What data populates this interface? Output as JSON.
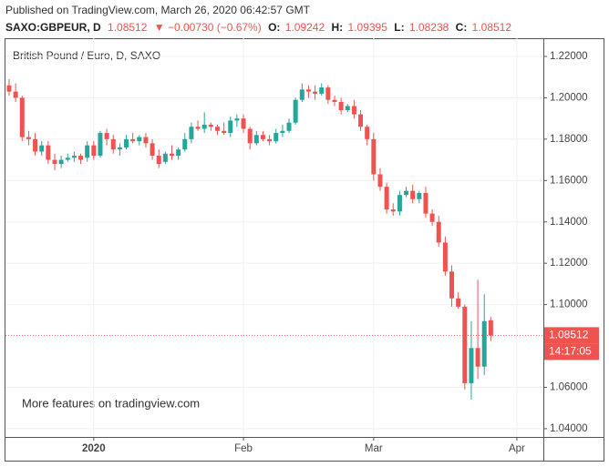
{
  "header": {
    "published": "Published on TradingView.com, March 26, 2020 06:42:57 GMT",
    "symbol": "SAXO:GBPEUR, D",
    "price": "1.08512",
    "change": "▼ −0.00730 (−0.67%)",
    "ohlc": [
      {
        "label": "O:",
        "value": "1.09242"
      },
      {
        "label": "H:",
        "value": "1.09395"
      },
      {
        "label": "L:",
        "value": "1.08238"
      },
      {
        "label": "C:",
        "value": "1.08512"
      }
    ]
  },
  "chart_data": {
    "type": "candlestick",
    "title": "British Pound / Euro, D, SAXO",
    "watermark": "More features on tradingview.com",
    "up_color": "#26a69a",
    "down_color": "#ef5350",
    "categories": [
      null,
      null,
      null,
      null,
      null,
      null,
      null,
      null,
      null,
      null,
      null,
      null,
      null,
      "2020",
      null,
      null,
      null,
      null,
      null,
      null,
      null,
      null,
      null,
      null,
      null,
      null,
      null,
      null,
      null,
      null,
      null,
      null,
      null,
      null,
      null,
      null,
      "Feb",
      null,
      null,
      null,
      null,
      null,
      null,
      null,
      null,
      null,
      null,
      null,
      null,
      null,
      null,
      null,
      null,
      null,
      null,
      null,
      "Mar",
      null,
      null,
      null,
      null,
      null,
      null,
      null,
      null,
      null,
      null,
      null,
      null,
      null,
      null,
      null,
      null,
      null,
      null,
      null,
      null,
      null,
      "Apr"
    ],
    "open": [
      1.206,
      1.203,
      1.2,
      1.181,
      1.18,
      1.174,
      1.177,
      1.17,
      1.168,
      1.17,
      1.171,
      1.172,
      1.171,
      1.177,
      1.172,
      1.183,
      1.18,
      1.175,
      1.176,
      1.18,
      1.179,
      1.181,
      1.178,
      1.172,
      1.169,
      1.173,
      1.172,
      1.175,
      1.18,
      1.186,
      1.185,
      1.187,
      1.186,
      1.184,
      1.183,
      1.189,
      1.19,
      1.185,
      1.178,
      1.182,
      1.18,
      1.179,
      1.183,
      1.184,
      1.188,
      1.199,
      1.204,
      1.203,
      1.202,
      1.205,
      1.199,
      1.198,
      1.194,
      1.196,
      1.192,
      1.186,
      1.18,
      1.163,
      1.157,
      1.146,
      1.145,
      1.153,
      1.155,
      1.151,
      1.154,
      1.144,
      1.14,
      1.13,
      1.116,
      1.103,
      1.099,
      1.062,
      1.079,
      1.07,
      1.09242,
      null,
      null,
      null,
      null
    ],
    "high": [
      1.209,
      1.207,
      1.201,
      1.184,
      1.183,
      1.179,
      1.179,
      1.173,
      1.172,
      1.173,
      1.174,
      1.173,
      1.179,
      1.179,
      1.184,
      1.185,
      1.182,
      1.178,
      1.182,
      1.183,
      1.182,
      1.183,
      1.18,
      1.175,
      1.174,
      1.177,
      1.176,
      1.183,
      1.188,
      1.189,
      1.193,
      1.188,
      1.187,
      1.188,
      1.191,
      1.192,
      1.192,
      1.186,
      1.184,
      1.184,
      1.182,
      1.185,
      1.187,
      1.19,
      1.2,
      1.207,
      1.206,
      1.206,
      1.207,
      1.206,
      1.201,
      1.2,
      1.197,
      1.199,
      1.194,
      1.187,
      1.183,
      1.166,
      1.159,
      1.149,
      1.155,
      1.157,
      1.158,
      1.155,
      1.157,
      1.146,
      1.143,
      1.133,
      1.119,
      1.106,
      1.1,
      1.092,
      1.112,
      1.105,
      1.09395,
      null,
      null,
      null,
      null
    ],
    "low": [
      1.201,
      1.198,
      1.179,
      1.177,
      1.172,
      1.172,
      1.168,
      1.165,
      1.166,
      1.169,
      1.169,
      1.168,
      1.169,
      1.17,
      1.171,
      1.177,
      1.173,
      1.172,
      1.175,
      1.178,
      1.177,
      1.176,
      1.17,
      1.166,
      1.168,
      1.17,
      1.17,
      1.174,
      1.178,
      1.184,
      1.183,
      1.184,
      1.182,
      1.182,
      1.181,
      1.186,
      1.183,
      1.175,
      1.177,
      1.179,
      1.177,
      1.178,
      1.181,
      1.183,
      1.187,
      1.198,
      1.2,
      1.199,
      1.201,
      1.197,
      1.196,
      1.192,
      1.193,
      1.19,
      1.184,
      1.177,
      1.16,
      1.155,
      1.144,
      1.143,
      1.143,
      1.152,
      1.149,
      1.149,
      1.142,
      1.138,
      1.128,
      1.114,
      1.099,
      1.098,
      1.059,
      1.054,
      1.064,
      1.066,
      1.08238,
      null,
      null,
      null,
      null
    ],
    "close": [
      1.203,
      1.2,
      1.181,
      1.18,
      1.174,
      1.177,
      1.17,
      1.168,
      1.17,
      1.171,
      1.172,
      1.17,
      1.177,
      1.172,
      1.183,
      1.18,
      1.175,
      1.176,
      1.18,
      1.179,
      1.181,
      1.178,
      1.172,
      1.168,
      1.173,
      1.172,
      1.175,
      1.18,
      1.186,
      1.185,
      1.187,
      1.186,
      1.184,
      1.183,
      1.189,
      1.19,
      1.185,
      1.178,
      1.182,
      1.18,
      1.179,
      1.183,
      1.184,
      1.188,
      1.199,
      1.204,
      1.203,
      1.202,
      1.205,
      1.199,
      1.198,
      1.194,
      1.196,
      1.192,
      1.186,
      1.18,
      1.163,
      1.157,
      1.146,
      1.145,
      1.153,
      1.155,
      1.151,
      1.154,
      1.144,
      1.14,
      1.13,
      1.116,
      1.103,
      1.099,
      1.062,
      1.079,
      1.07,
      1.092,
      1.08512,
      null,
      null,
      null,
      null
    ],
    "last_price": 1.08512,
    "countdown": "14:17:05",
    "ylim": [
      1.036,
      1.2288
    ],
    "yticks": [
      {
        "value": 1.04,
        "label": "1.04000"
      },
      {
        "value": 1.06,
        "label": "1.06000"
      },
      {
        "value": 1.1,
        "label": "1.10000"
      },
      {
        "value": 1.12,
        "label": "1.12000"
      },
      {
        "value": 1.14,
        "label": "1.14000"
      },
      {
        "value": 1.16,
        "label": "1.16000"
      },
      {
        "value": 1.18,
        "label": "1.18000"
      },
      {
        "value": 1.2,
        "label": "1.20000"
      },
      {
        "value": 1.22,
        "label": "1.22000"
      }
    ],
    "grid": true
  }
}
